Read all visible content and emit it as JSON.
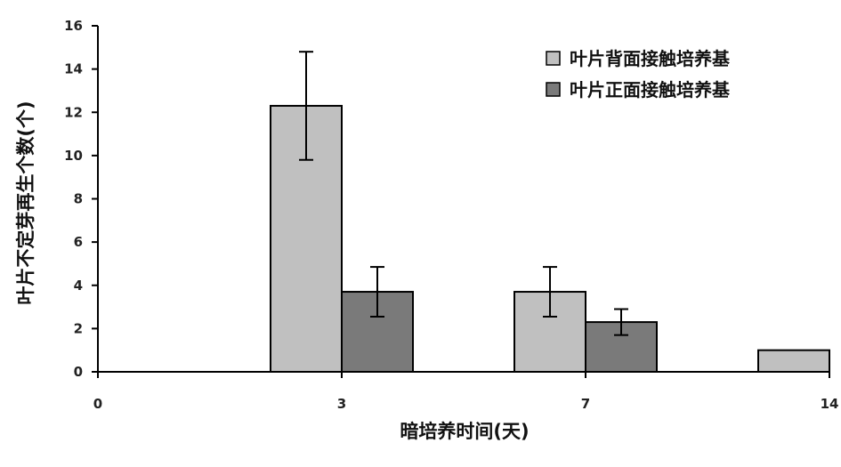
{
  "chart_data": {
    "type": "bar",
    "categories": [
      "0",
      "3",
      "7",
      "14"
    ],
    "series": [
      {
        "name": "叶片背面接触培养基",
        "color": "#c0c0c0",
        "values": [
          0,
          12.3,
          3.7,
          1.0
        ],
        "errors": [
          null,
          2.5,
          1.15,
          null
        ]
      },
      {
        "name": "叶片正面接触培养基",
        "color": "#7a7a7a",
        "values": [
          0,
          3.7,
          2.3,
          0
        ],
        "errors": [
          null,
          1.15,
          0.6,
          null
        ]
      }
    ],
    "xlabel": "暗培养时间(天)",
    "ylabel": "叶片不定芽再生个数(个)",
    "ylim": [
      0,
      16
    ],
    "yticks": [
      0,
      2,
      4,
      6,
      8,
      10,
      12,
      14,
      16
    ],
    "grid": false,
    "legend": "top-right"
  }
}
